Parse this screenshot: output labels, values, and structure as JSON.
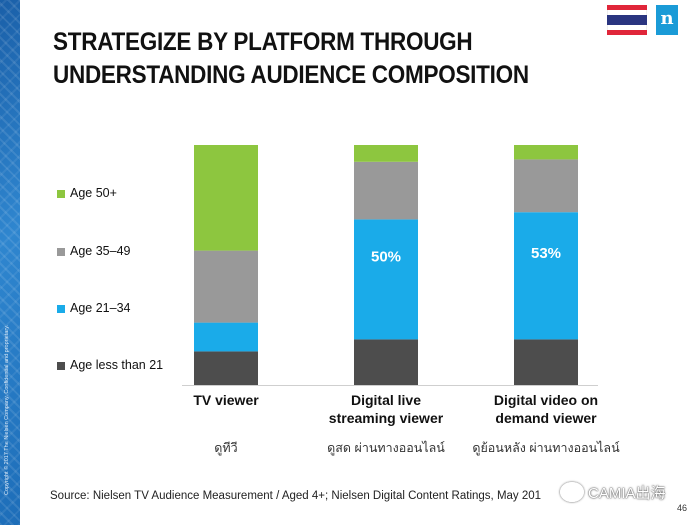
{
  "slide": {
    "title_line1": "STRATEGIZE BY PLATFORM THROUGH",
    "title_line2": "UNDERSTANDING AUDIENCE COMPOSITION",
    "source": "Source: Nielsen TV Audience Measurement  / Aged 4+; Nielsen Digital Content Ratings, May 201",
    "page_number": "46",
    "side_text": "Copyright © 2017 The Nielsen Company. Confidential and proprietary.",
    "logo_letter": "n",
    "watermark": "CAMIA出海"
  },
  "colors": {
    "age_50_plus": "#8dc63f",
    "age_35_49": "#999999",
    "age_21_34": "#1aabe9",
    "age_under_21": "#4d4d4d",
    "flag_red": "#e0263a",
    "flag_white": "#ffffff",
    "flag_blue": "#2a3580"
  },
  "icons": {
    "flag": "thailand-flag-icon",
    "logo": "nielsen-logo-icon",
    "watermark": "wechat-icon"
  },
  "chart_data": {
    "type": "bar",
    "stacked": true,
    "categories": [
      "TV viewer",
      "Digital live streaming viewer",
      "Digital video on demand viewer"
    ],
    "category_label_lines": [
      [
        "TV viewer"
      ],
      [
        "Digital live",
        "streaming viewer"
      ],
      [
        "Digital video on",
        "demand viewer"
      ]
    ],
    "thai_labels": [
      "ดูทีวี",
      "ดูสด ผ่านทางออนไลน์",
      "ดูย้อนหลัง ผ่านทางออนไลน์"
    ],
    "series": [
      {
        "name": "Age less than 21",
        "color_key": "age_under_21",
        "values": [
          14,
          19,
          19
        ]
      },
      {
        "name": "Age 21–34",
        "color_key": "age_21_34",
        "values": [
          12,
          50,
          53
        ]
      },
      {
        "name": "Age 35–49",
        "color_key": "age_35_49",
        "values": [
          30,
          24,
          22
        ]
      },
      {
        "name": "Age 50+",
        "color_key": "age_50_plus",
        "values": [
          44,
          7,
          6
        ]
      }
    ],
    "data_labels": [
      {
        "series": "Age 21–34",
        "category": "Digital live streaming viewer",
        "text": "50%"
      },
      {
        "series": "Age 21–34",
        "category": "Digital video on demand viewer",
        "text": "53%"
      }
    ],
    "legend_order": [
      "Age 50+",
      "Age 35–49",
      "Age 21–34",
      "Age less than 21"
    ],
    "legend_position": "left",
    "ylim": [
      0,
      100
    ],
    "xlabel": "",
    "ylabel": "",
    "title": ""
  }
}
